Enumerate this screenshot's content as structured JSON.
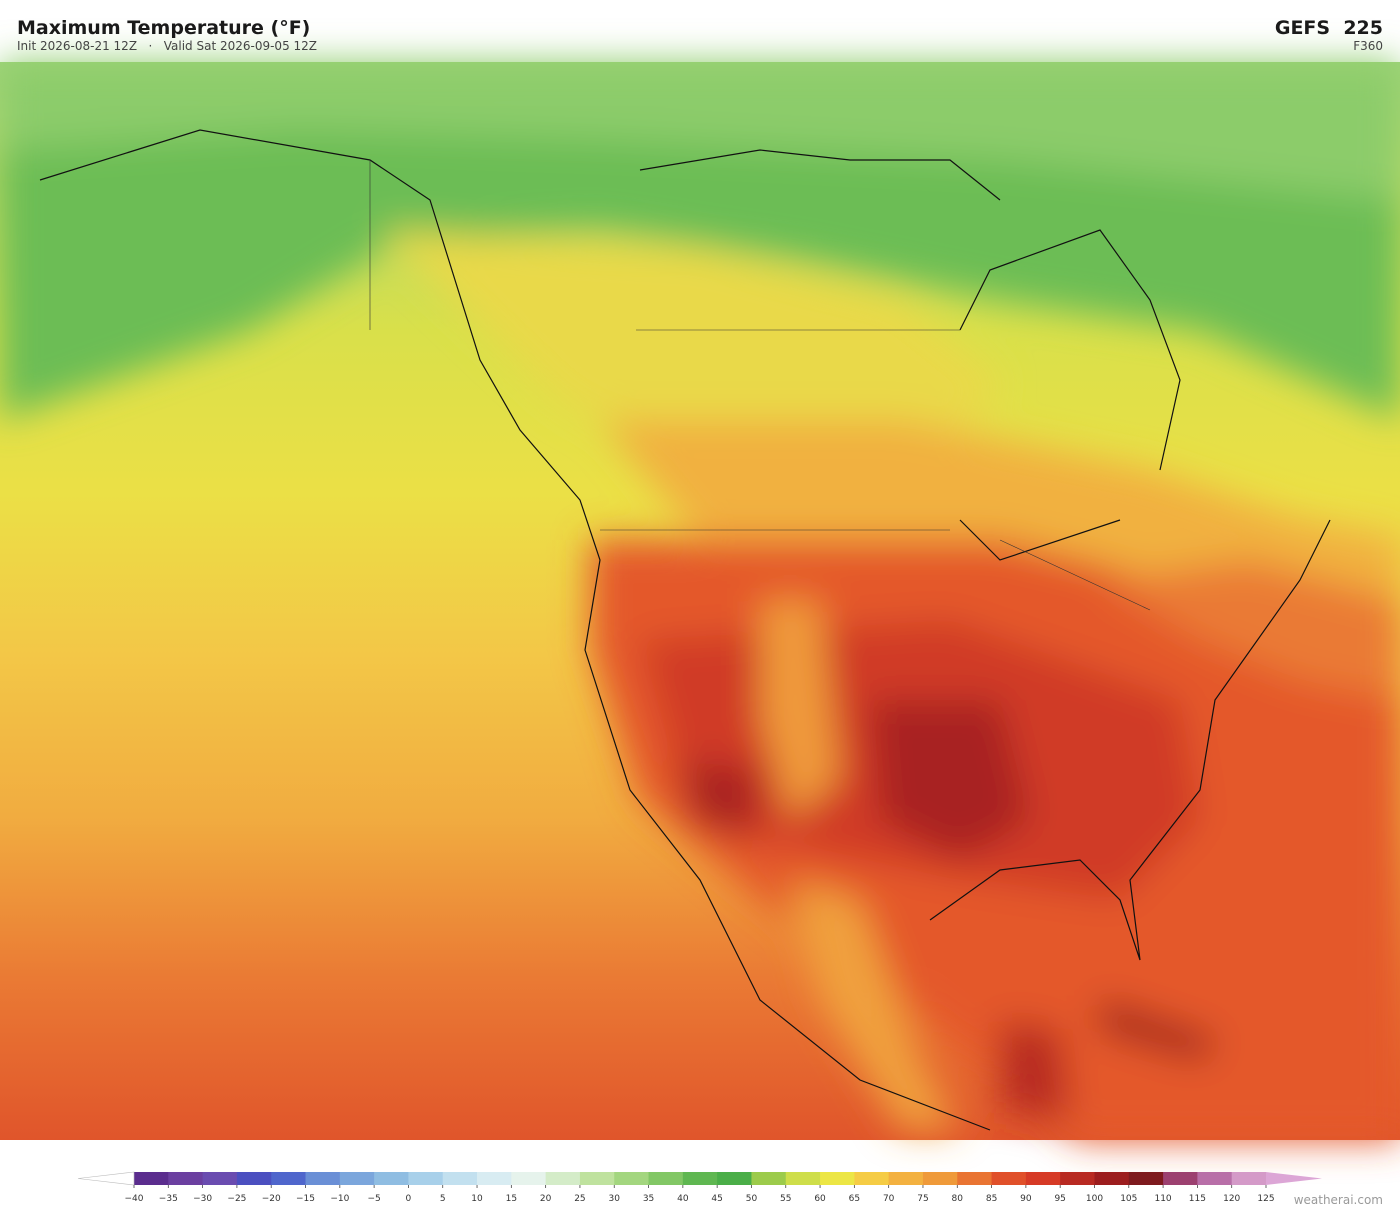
{
  "header": {
    "title": "Maximum Temperature  (°F)",
    "subtitle": "Init 2026-08-21 12Z   ·   Valid Sat 2026-09-05 12Z",
    "model": "GEFS  225",
    "forecast_hour": "F360"
  },
  "colorbar": {
    "ticks": [
      {
        "value": -40,
        "label": "−40"
      },
      {
        "value": -35,
        "label": "−35"
      },
      {
        "value": -30,
        "label": "−30"
      },
      {
        "value": -25,
        "label": "−25"
      },
      {
        "value": -20,
        "label": "−20"
      },
      {
        "value": -15,
        "label": "−15"
      },
      {
        "value": -10,
        "label": "−10"
      },
      {
        "value": -5,
        "label": "−5"
      },
      0,
      5,
      10,
      15,
      20,
      25,
      30,
      35,
      40,
      45,
      50,
      55,
      60,
      65,
      70,
      75,
      80,
      85,
      90,
      95,
      100,
      105,
      110,
      115,
      120,
      125
    ],
    "colors": [
      "#5b2d8e",
      "#6b3fa0",
      "#6a4cb0",
      "#4b4fc0",
      "#4f66cc",
      "#6a8fd6",
      "#7ba6dc",
      "#8fbde2",
      "#a8d0ea",
      "#c2e0ef",
      "#d8ecf2",
      "#e6f3ec",
      "#d4ecc8",
      "#bfe29e",
      "#a3d67f",
      "#82c765",
      "#5fb751",
      "#4aae48",
      "#9ccb4b",
      "#cede4a",
      "#ece645",
      "#f5cc45",
      "#f3b140",
      "#ef9a3a",
      "#e97432",
      "#e0502a",
      "#d63a26",
      "#b82a22",
      "#9c1d1e",
      "#7e1a1e",
      "#9c4070",
      "#b86fa8",
      "#d49ac8"
    ],
    "under_color": "#ffffff",
    "over_color": "#dca6d6"
  },
  "watermark": "weatherai.com"
}
